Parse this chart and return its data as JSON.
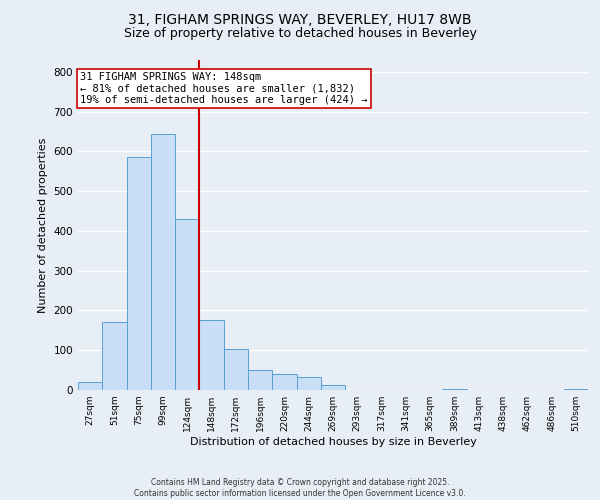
{
  "title": "31, FIGHAM SPRINGS WAY, BEVERLEY, HU17 8WB",
  "subtitle": "Size of property relative to detached houses in Beverley",
  "xlabel": "Distribution of detached houses by size in Beverley",
  "ylabel": "Number of detached properties",
  "bar_color": "#c8dff5",
  "bar_edge_color": "#5a9fd4",
  "vline_x": 5,
  "vline_color": "#cc0000",
  "annotation_title": "31 FIGHAM SPRINGS WAY: 148sqm",
  "annotation_line1": "← 81% of detached houses are smaller (1,832)",
  "annotation_line2": "19% of semi-detached houses are larger (424) →",
  "annotation_box_color": "#ffffff",
  "annotation_box_edge": "#cc0000",
  "categories": [
    "27sqm",
    "51sqm",
    "75sqm",
    "99sqm",
    "124sqm",
    "148sqm",
    "172sqm",
    "196sqm",
    "220sqm",
    "244sqm",
    "269sqm",
    "293sqm",
    "317sqm",
    "341sqm",
    "365sqm",
    "389sqm",
    "413sqm",
    "438sqm",
    "462sqm",
    "486sqm",
    "510sqm"
  ],
  "values": [
    20,
    170,
    585,
    645,
    430,
    175,
    102,
    50,
    40,
    33,
    12,
    0,
    0,
    0,
    0,
    2,
    0,
    0,
    0,
    0,
    3
  ],
  "ylim": [
    0,
    830
  ],
  "yticks": [
    0,
    100,
    200,
    300,
    400,
    500,
    600,
    700,
    800
  ],
  "footer1": "Contains HM Land Registry data © Crown copyright and database right 2025.",
  "footer2": "Contains public sector information licensed under the Open Government Licence v3.0.",
  "background_color": "#e8eef5",
  "grid_color": "#ffffff",
  "title_fontsize": 10,
  "subtitle_fontsize": 9,
  "xlabel_fontsize": 8,
  "ylabel_fontsize": 8
}
